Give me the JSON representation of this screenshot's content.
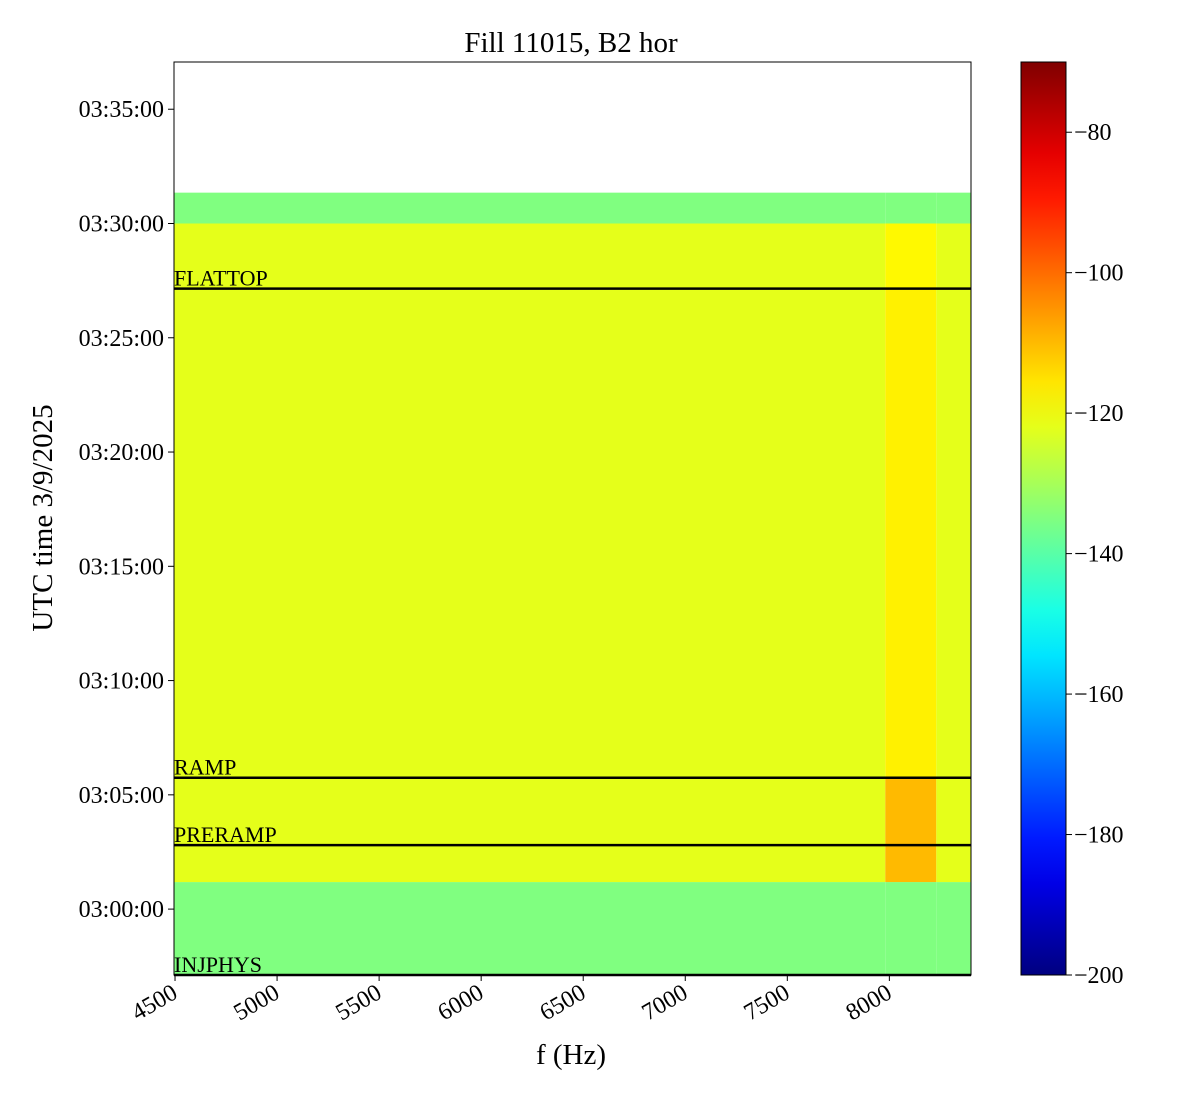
{
  "chart_data": {
    "type": "spectrogram",
    "title": "Fill 11015, B2 hor",
    "xlabel": "f (Hz)",
    "ylabel": "UTC time 3/9/2025",
    "x_bins": [
      4495,
      7980,
      8230,
      8400
    ],
    "y_bins": [
      10627,
      10871,
      10968,
      11145,
      12429,
      12600,
      12681
    ],
    "values": [
      [
        -135,
        -135,
        -135
      ],
      [
        -122,
        -110,
        -122
      ],
      [
        -122,
        -110,
        -122
      ],
      [
        -122,
        -117,
        -122
      ],
      [
        -122,
        -118,
        -122
      ],
      [
        -135,
        -135,
        -135
      ]
    ],
    "xlim": [
      4495,
      8400
    ],
    "xticks": [
      4500,
      5000,
      5500,
      6000,
      6500,
      7000,
      7500,
      8000
    ],
    "ylim": [
      10627,
      13024
    ],
    "yticks": [
      {
        "value": 10800,
        "label": "03:00:00"
      },
      {
        "value": 11100,
        "label": "03:05:00"
      },
      {
        "value": 11400,
        "label": "03:10:00"
      },
      {
        "value": 11700,
        "label": "03:15:00"
      },
      {
        "value": 12000,
        "label": "03:20:00"
      },
      {
        "value": 12300,
        "label": "03:25:00"
      },
      {
        "value": 12600,
        "label": "03:30:00"
      },
      {
        "value": 12900,
        "label": "03:35:00"
      }
    ],
    "colormap": "jet",
    "clim": [
      -200,
      -70
    ],
    "colorbar_ticks": [
      {
        "value": -80,
        "label": "−80"
      },
      {
        "value": -100,
        "label": "−100"
      },
      {
        "value": -120,
        "label": "−120"
      },
      {
        "value": -140,
        "label": "−140"
      },
      {
        "value": -160,
        "label": "−160"
      },
      {
        "value": -180,
        "label": "−180"
      },
      {
        "value": -200,
        "label": "−200"
      }
    ],
    "markers": [
      {
        "label": "FLATTOP",
        "time": 12429
      },
      {
        "label": "RAMP",
        "time": 11145
      },
      {
        "label": "PRERAMP",
        "time": 10968
      },
      {
        "label": "INJPHYS",
        "time": 10627
      }
    ]
  }
}
